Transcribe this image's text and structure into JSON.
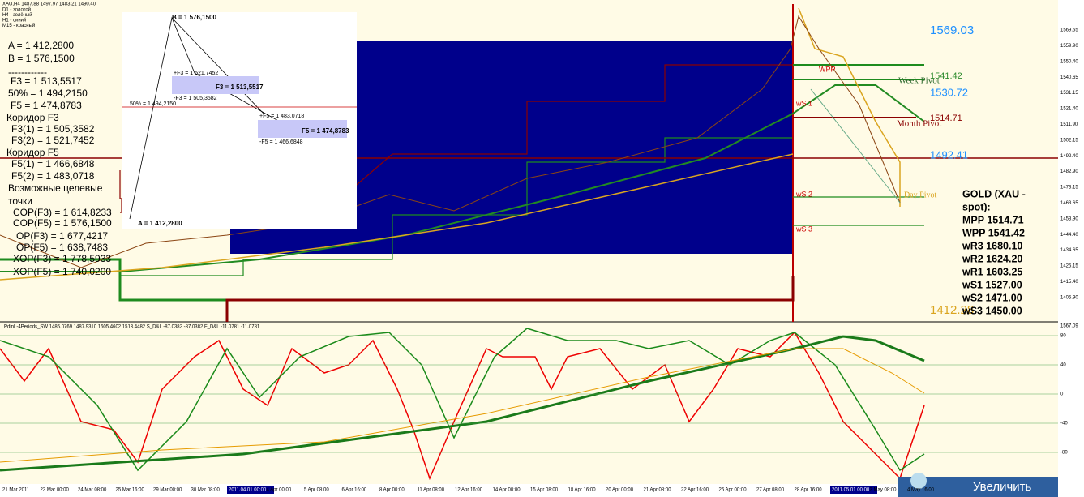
{
  "header": {
    "symbol": "XAU,H4  1487.88 1497.97 1483.21 1490.40",
    "legend": [
      "D1 - золотой",
      "H4 - зелёный",
      "H1 - синий",
      "M15 - красный"
    ]
  },
  "info_panel": [
    "A = 1 412,2800",
    "B = 1 576,1500",
    "------------",
    "F3 = 1 513,5517",
    "50% = 1 494,2150",
    "F5 = 1 474,8783",
    "Коридор F3",
    "F3(1) = 1 505,3582",
    "F3(2) = 1 521,7452",
    "Коридор F5",
    "F5(1) = 1 466,6848",
    "F5(2) = 1 483,0718",
    "Возможные целевые",
    "точки",
    "COP(F3) = 1 614,8233",
    "COP(F5) = 1 576,1500",
    "OP(F3) = 1 677,4217",
    "OP(F5) = 1 638,7483",
    "XOP(F3) = 1 778,5933",
    "XOP(F5) = 1 740,0200"
  ],
  "diagram": {
    "b": "B = 1 576,1500",
    "f3_plus": "+F3 = 1 521,7452",
    "f3": "F3 = 1 513,5517",
    "f3_minus": "-F3 = 1 505,3582",
    "half": "50% = 1 494,2150",
    "f5_plus": "+F5 = 1 483,0718",
    "f5": "F5 = 1 474,8783",
    "f5_minus": "-F5 = 1 466,6848",
    "a": "A = 1 412,2800"
  },
  "levels": {
    "l1": "1569.03",
    "l2": "1541.42",
    "l3": "1530.72",
    "l4": "1514.71",
    "l5": "1492.41",
    "l6": "1412.28",
    "week": "Week Pivot",
    "month": "Month Pivot",
    "day": "Day Pivot",
    "wpp": "WPP",
    "ws1": "wS 1",
    "ws2": "wS 2",
    "ws3": "wS 3"
  },
  "gold_box": [
    "GOLD (XAU -",
    "spot):",
    "MPP 1514.71",
    "WPP 1541.42",
    "wR3 1680.10",
    "wR2 1624.20",
    "wR1 1603.25",
    "wS1 1527.00",
    "wS2 1471.00",
    "wS3 1450.00"
  ],
  "price_axis": [
    "1569.65",
    "1559.90",
    "1550.40",
    "1540.65",
    "1531.15",
    "1521.40",
    "1511.90",
    "1502.15",
    "1492.40",
    "1482.90",
    "1473.15",
    "1463.65",
    "1453.90",
    "1444.40",
    "1434.65",
    "1425.15",
    "1415.40",
    "1405.90"
  ],
  "indicator": {
    "header": "PdinL-4Periods_SW 1485.0769 1487.9310 1505.4602 1513.4482  S_D&L -87.0382 -87.0382  F_D&L -11.0781 -11.0781",
    "top": "1567.09",
    "axis": [
      "80",
      "40",
      "0",
      "-40",
      "-80"
    ]
  },
  "time_axis": [
    "21 Mar 2011",
    "23 Mar 00:00",
    "24 Mar 08:00",
    "25 Mar 16:00",
    "29 Mar 00:00",
    "30 Mar 08:00",
    "2011.04.01 00:00",
    "4 Apr 00:00",
    "5 Apr 08:00",
    "6 Apr 16:00",
    "8 Apr 00:00",
    "11 Apr 08:00",
    "12 Apr 16:00",
    "14 Apr 00:00",
    "15 Apr 08:00",
    "18 Apr 16:00",
    "20 Apr 00:00",
    "21 Apr 08:00",
    "22 Apr 16:00",
    "26 Apr 00:00",
    "27 Apr 08:00",
    "28 Apr 16:00",
    "2011.05.01 00:00",
    "3 May 08:00",
    "4 May 16:00"
  ],
  "button": "Увеличить"
}
